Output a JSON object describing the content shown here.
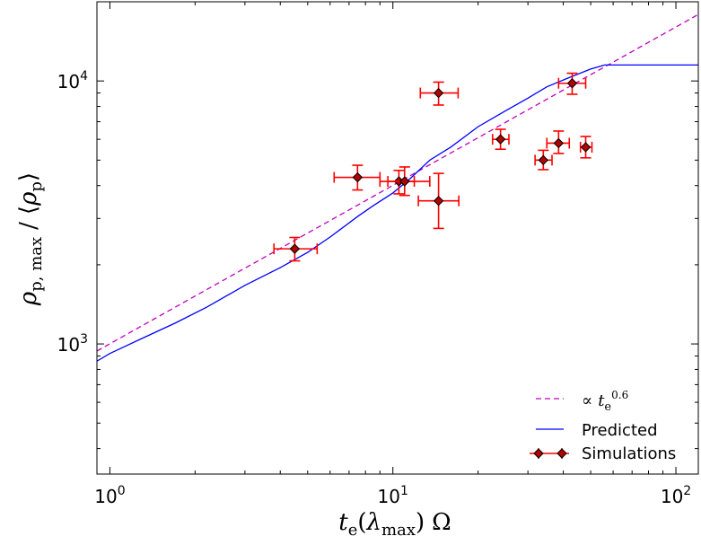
{
  "chart_data": {
    "type": "scatter",
    "title": "",
    "xlabel": "t_e(λ_max) Ω",
    "ylabel": "ρ_p, max / ⟨ρ_p⟩",
    "xscale": "log",
    "yscale": "log",
    "xlim": [
      0.9,
      120
    ],
    "ylim": [
      320,
      20000
    ],
    "x_ticks": [
      {
        "value": 1,
        "base": "10",
        "exp": "0"
      },
      {
        "value": 10,
        "base": "10",
        "exp": "1"
      },
      {
        "value": 100,
        "base": "10",
        "exp": "2"
      }
    ],
    "y_ticks": [
      {
        "value": 1000,
        "base": "10",
        "exp": "3"
      },
      {
        "value": 10000,
        "base": "10",
        "exp": "4"
      }
    ],
    "grid": false,
    "legend_position": "bottom-right",
    "colors": {
      "fit": "#bf00bf",
      "predicted": "#0000ff",
      "simulations_edge": "#ff0000",
      "simulations_marker_face": "#b00000",
      "simulations_marker_edge": "#000000"
    },
    "series": [
      {
        "name": "∝ t_e^0.6",
        "kind": "line",
        "style": "dashed",
        "x": [
          0.9,
          120
        ],
        "y": [
          940,
          17900
        ]
      },
      {
        "name": "Predicted",
        "kind": "line",
        "style": "solid",
        "x": [
          0.9,
          1.0,
          1.3,
          1.7,
          2.2,
          3.0,
          4.0,
          5.0,
          6.0,
          7.5,
          8.5,
          10.0,
          11.5,
          13.5,
          16.0,
          20.0,
          25.0,
          30.0,
          35.0,
          42.0,
          50.0,
          56.0,
          70.0,
          100.0,
          120.0
        ],
        "y": [
          860,
          920,
          1050,
          1200,
          1380,
          1670,
          1950,
          2230,
          2550,
          3050,
          3350,
          3750,
          4250,
          5000,
          5600,
          6700,
          7700,
          8600,
          9500,
          10300,
          11100,
          11500,
          11500,
          11500,
          11500
        ]
      },
      {
        "name": "Simulations",
        "kind": "errorbar",
        "points": [
          {
            "x": 4.5,
            "y": 2300,
            "xerr": [
              0.7,
              0.9
            ],
            "yerr": [
              230,
              240
            ]
          },
          {
            "x": 7.5,
            "y": 4300,
            "xerr": [
              1.3,
              1.5
            ],
            "yerr": [
              450,
              480
            ]
          },
          {
            "x": 10.5,
            "y": 4150,
            "xerr": [
              1.5,
              1.4
            ],
            "yerr": [
              430,
              420
            ]
          },
          {
            "x": 11.0,
            "y": 4150,
            "xerr": [
              1.4,
              2.5
            ],
            "yerr": [
              480,
              560
            ]
          },
          {
            "x": 14.5,
            "y": 3500,
            "xerr": [
              2.2,
              2.6
            ],
            "yerr": [
              750,
              950
            ]
          },
          {
            "x": 14.5,
            "y": 9000,
            "xerr": [
              2.0,
              2.5
            ],
            "yerr": [
              900,
              900
            ]
          },
          {
            "x": 24.0,
            "y": 6000,
            "xerr": [
              1.5,
              1.7
            ],
            "yerr": [
              500,
              550
            ]
          },
          {
            "x": 34.0,
            "y": 5000,
            "xerr": [
              2.2,
              2.5
            ],
            "yerr": [
              400,
              450
            ]
          },
          {
            "x": 38.5,
            "y": 5800,
            "xerr": [
              3.5,
              3.5
            ],
            "yerr": [
              500,
              650
            ]
          },
          {
            "x": 43.0,
            "y": 9800,
            "xerr": [
              4.5,
              5.0
            ],
            "yerr": [
              900,
              900
            ]
          },
          {
            "x": 48.0,
            "y": 5600,
            "xerr": [
              2.0,
              2.5
            ],
            "yerr": [
              500,
              550
            ]
          }
        ]
      }
    ],
    "legend": {
      "fit_prefix": "∝",
      "fit_var": "t",
      "fit_sub": "e",
      "fit_sup": "0.6",
      "predicted": "Predicted",
      "simulations": "Simulations"
    },
    "axis_labels": {
      "x_var": "t",
      "x_sub": "e",
      "x_paren_open": "(",
      "x_lambda": "λ",
      "x_lambda_sub": "max",
      "x_paren_close": ")",
      "x_omega": "Ω",
      "y_var": "ρ",
      "y_sub": "p, max",
      "y_slash": "/",
      "y_open": "⟨",
      "y_var2": "ρ",
      "y_sub2": "p",
      "y_close": "⟩"
    }
  }
}
